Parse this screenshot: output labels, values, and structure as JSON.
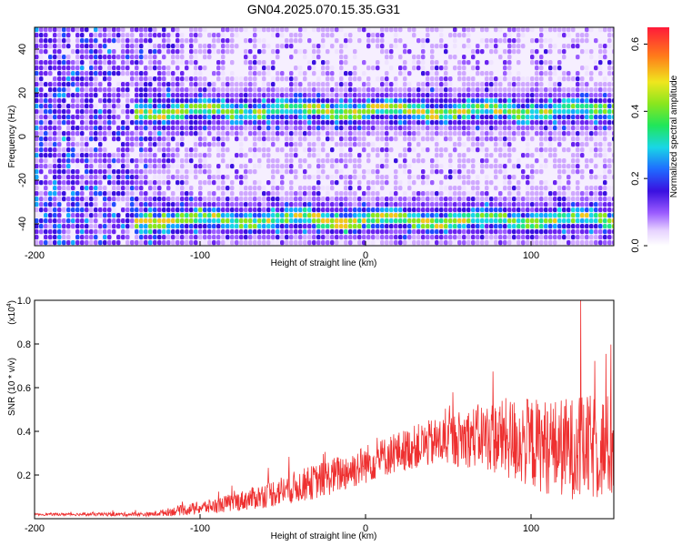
{
  "title": "GN04.2025.070.15.35.G31",
  "chart_data": [
    {
      "type": "heatmap",
      "xlabel": "Height of straight line (km)",
      "ylabel": "Frequency (Hz)",
      "xlim": [
        -200,
        150
      ],
      "ylim": [
        -50,
        50
      ],
      "x_ticks": [
        "-200",
        "-100",
        "0",
        "100"
      ],
      "y_ticks": [
        "-40",
        "-20",
        "0",
        "20",
        "40"
      ],
      "colorbar": {
        "label": "Normalized spectral amplitude",
        "range": [
          0,
          0.65
        ],
        "ticks": [
          "0.0",
          "0.2",
          "0.4",
          "0.6"
        ]
      },
      "bands": [
        {
          "center_hz": 13,
          "x_range": [
            -140,
            150
          ]
        },
        {
          "center_hz": -37,
          "x_range": [
            -140,
            150
          ]
        }
      ],
      "grid": false
    },
    {
      "type": "line",
      "xlabel": "Height of straight line (km)",
      "ylabel": "SNR (10 * v/v)",
      "scale_label": "(x10",
      "scale_exp": "4",
      "scale_close": ")",
      "xlim": [
        -200,
        150
      ],
      "ylim": [
        0,
        1.0
      ],
      "x_ticks": [
        "-200",
        "-100",
        "0",
        "100"
      ],
      "y_ticks": [
        "0.2",
        "0.4",
        "0.6",
        "0.8",
        "1.0"
      ],
      "envelope": {
        "x": [
          -200,
          -130,
          -110,
          -90,
          -70,
          -50,
          -30,
          -10,
          10,
          30,
          50,
          70,
          90,
          110,
          130,
          150
        ],
        "base": [
          0.02,
          0.02,
          0.04,
          0.06,
          0.09,
          0.13,
          0.17,
          0.22,
          0.28,
          0.33,
          0.36,
          0.38,
          0.36,
          0.33,
          0.32,
          0.33
        ],
        "spread": [
          0.005,
          0.01,
          0.025,
          0.035,
          0.05,
          0.07,
          0.08,
          0.09,
          0.09,
          0.1,
          0.12,
          0.15,
          0.2,
          0.22,
          0.24,
          0.25
        ]
      },
      "peak": {
        "x": 130,
        "y": 1.0
      },
      "color": "#ee3030",
      "grid": false
    }
  ]
}
